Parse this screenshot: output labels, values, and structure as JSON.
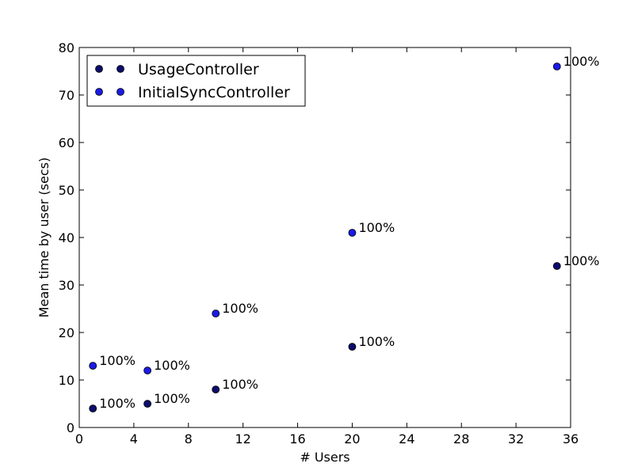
{
  "chart_data": {
    "type": "scatter",
    "title": "",
    "xlabel": "# Users",
    "ylabel": "Mean time by user (secs)",
    "xlim": [
      0,
      36
    ],
    "ylim": [
      0,
      80
    ],
    "xticks": [
      0,
      4,
      8,
      12,
      16,
      20,
      24,
      28,
      32,
      36
    ],
    "yticks": [
      0,
      10,
      20,
      30,
      40,
      50,
      60,
      70,
      80
    ],
    "grid": false,
    "legend_position": "top-left",
    "series": [
      {
        "name": "UsageController",
        "color": "#0c0c6b",
        "x": [
          1,
          5,
          10,
          20,
          35
        ],
        "y": [
          4,
          5,
          8,
          17,
          34
        ],
        "labels": [
          "100%",
          "100%",
          "100%",
          "100%",
          "100%"
        ]
      },
      {
        "name": "InitialSyncController",
        "color": "#1a1ae6",
        "x": [
          1,
          5,
          10,
          20,
          35
        ],
        "y": [
          13,
          12,
          24,
          41,
          76
        ],
        "labels": [
          "100%",
          "100%",
          "100%",
          "100%",
          "100%"
        ]
      }
    ]
  }
}
